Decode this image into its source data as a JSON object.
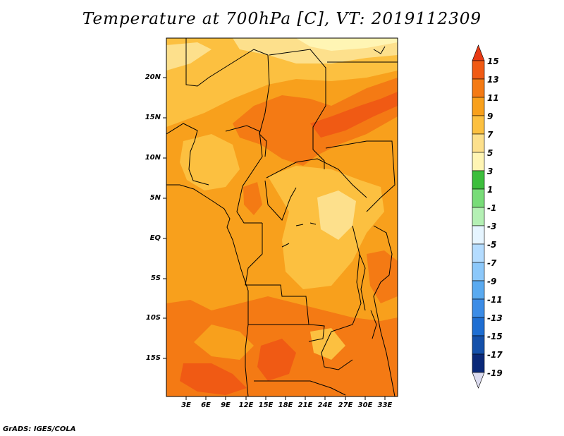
{
  "title": "Temperature at 700hPa [C], VT: 2019112309",
  "footer": "GrADS: IGES/COLA",
  "map": {
    "lat_labels": [
      "20N",
      "15N",
      "10N",
      "5N",
      "EQ",
      "5S",
      "10S",
      "15S"
    ],
    "lon_labels": [
      "3E",
      "6E",
      "9E",
      "12E",
      "15E",
      "18E",
      "21E",
      "24E",
      "27E",
      "30E",
      "33E"
    ]
  },
  "colorbar": {
    "labels": [
      "15",
      "13",
      "11",
      "9",
      "7",
      "5",
      "3",
      "1",
      "-1",
      "-3",
      "-5",
      "-7",
      "-9",
      "-11",
      "-13",
      "-15",
      "-17",
      "-19"
    ],
    "colors": [
      "#e83a14",
      "#f05a14",
      "#f47a14",
      "#f8a01c",
      "#fcc040",
      "#fde08c",
      "#fff5b4",
      "#3cbe3c",
      "#78dc78",
      "#b4f0b4",
      "#e6f5ff",
      "#b4dcff",
      "#8cc8fa",
      "#5aaaf0",
      "#3c8ce6",
      "#1e6ed2",
      "#1450aa",
      "#0a2878",
      "#dcdcf0"
    ]
  },
  "colors": {
    "field_base": "#f8a01c",
    "field_warm": "#f47a14",
    "field_hot": "#f05a14",
    "field_cool": "#fcc040",
    "field_cooler": "#fde08c"
  }
}
